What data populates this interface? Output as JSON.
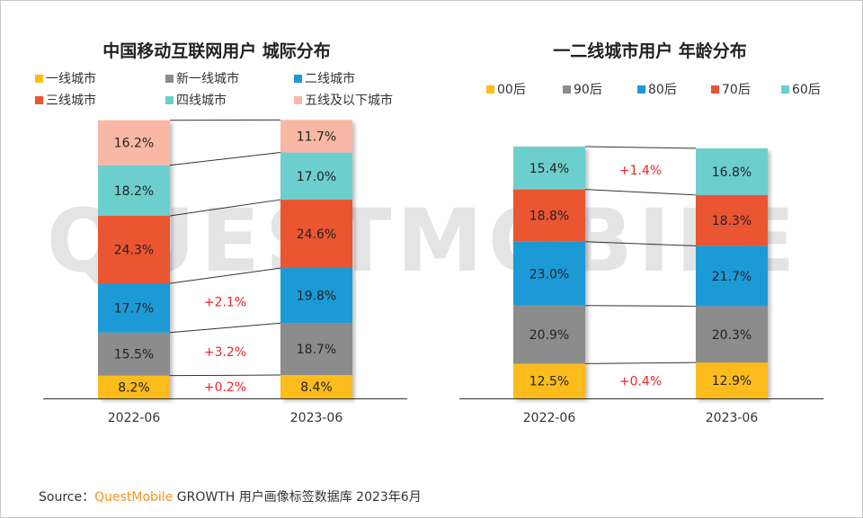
{
  "watermark": "QUESTMOBILE",
  "chart_data": [
    {
      "type": "stacked-bar",
      "title": "中国移动互联网用户 城际分布",
      "categories": [
        "2022-06",
        "2023-06"
      ],
      "legend_placement": "top",
      "ylim": [
        0,
        100
      ],
      "series": [
        {
          "name": "一线城市",
          "values": [
            8.2,
            8.4
          ],
          "color": "#fbbc1c",
          "labels": [
            "8.2%",
            "8.4%"
          ]
        },
        {
          "name": "新一线城市",
          "values": [
            15.5,
            18.7
          ],
          "color": "#8c8c8c",
          "labels": [
            "15.5%",
            "18.7%"
          ]
        },
        {
          "name": "二线城市",
          "values": [
            17.7,
            19.8
          ],
          "color": "#1b9ad6",
          "labels": [
            "17.7%",
            "19.8%"
          ]
        },
        {
          "name": "三线城市",
          "values": [
            24.3,
            24.6
          ],
          "color": "#ea5532",
          "labels": [
            "24.3%",
            "24.6%"
          ]
        },
        {
          "name": "四线城市",
          "values": [
            18.2,
            17.0
          ],
          "color": "#6ccfcd",
          "labels": [
            "18.2%",
            "17.0%"
          ]
        },
        {
          "name": "五线及以下城市",
          "values": [
            16.2,
            11.7
          ],
          "color": "#f9b8a5",
          "labels": [
            "16.2%",
            "11.7%"
          ]
        }
      ],
      "annotations": [
        {
          "series": 0,
          "text": "+0.2%"
        },
        {
          "series": 1,
          "text": "+3.2%"
        },
        {
          "series": 2,
          "text": "+2.1%"
        }
      ]
    },
    {
      "type": "stacked-bar",
      "title": "一二线城市用户 年龄分布",
      "categories": [
        "2022-06",
        "2023-06"
      ],
      "legend_placement": "top",
      "ylim": [
        0,
        100
      ],
      "series": [
        {
          "name": "00后",
          "values": [
            12.5,
            12.9
          ],
          "color": "#fbbc1c",
          "labels": [
            "12.5%",
            "12.9%"
          ]
        },
        {
          "name": "90后",
          "values": [
            20.9,
            20.3
          ],
          "color": "#8c8c8c",
          "labels": [
            "20.9%",
            "20.3%"
          ]
        },
        {
          "name": "80后",
          "values": [
            23.0,
            21.7
          ],
          "color": "#1b9ad6",
          "labels": [
            "23.0%",
            "21.7%"
          ]
        },
        {
          "name": "70后",
          "values": [
            18.8,
            18.3
          ],
          "color": "#ea5532",
          "labels": [
            "18.8%",
            "18.3%"
          ]
        },
        {
          "name": "60后",
          "values": [
            15.4,
            16.8
          ],
          "color": "#6ccfcd",
          "labels": [
            "15.4%",
            "16.8%"
          ]
        }
      ],
      "annotations": [
        {
          "series": 0,
          "text": "+0.4%"
        },
        {
          "series": 4,
          "text": "+1.4%"
        }
      ]
    }
  ],
  "source": {
    "prefix": "Source：",
    "brand": "QuestMobile",
    "rest": " GROWTH 用户画像标签数据库 2023年6月"
  }
}
